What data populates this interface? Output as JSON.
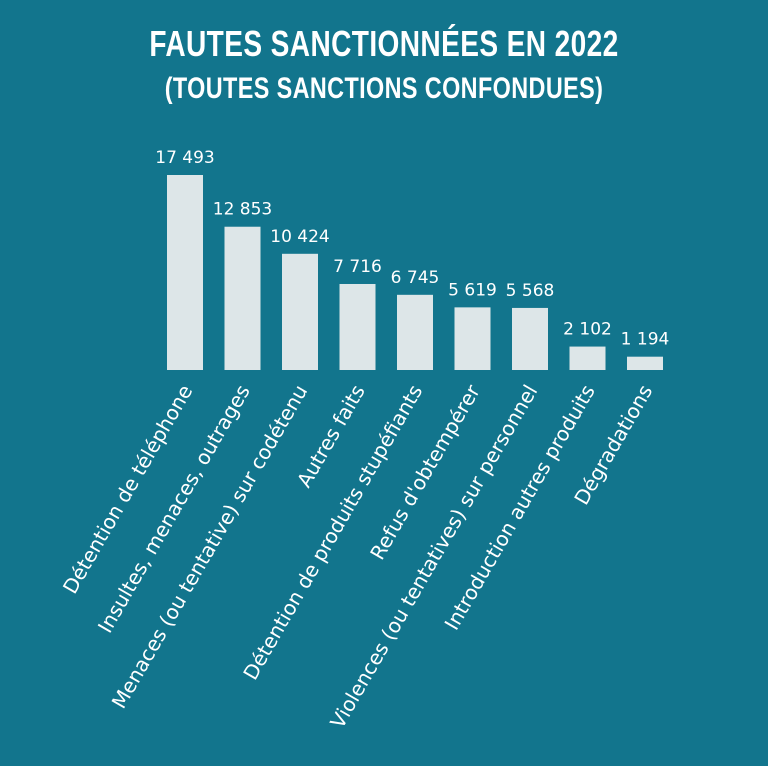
{
  "title_line1": "Fautes sanctionnées en 2022",
  "title_line2": "(toutes sanctions confondues)",
  "colors": {
    "background": "#12758d",
    "bar": "#dde6e8",
    "text": "#ffffff"
  },
  "chart_data": {
    "type": "bar",
    "title": "Fautes sanctionnées en 2022 (toutes sanctions confondues)",
    "categories": [
      "Détention de téléphone",
      "Insultes, menaces, outrages",
      "Menaces (ou tentative) sur codétenu",
      "Autres faits",
      "Détention de produits stupéfiants",
      "Refus d'obtempérer",
      "Violences (ou tentatives) sur personnel",
      "Introduction autres produits",
      "Dégradations"
    ],
    "values": [
      17493,
      12853,
      10424,
      7716,
      6745,
      5619,
      5568,
      2102,
      1194
    ],
    "value_labels": [
      "17 493",
      "12 853",
      "10 424",
      "7 716",
      "6 745",
      "5 619",
      "5 568",
      "2 102",
      "1 194"
    ],
    "grid": false,
    "legend": "none"
  }
}
